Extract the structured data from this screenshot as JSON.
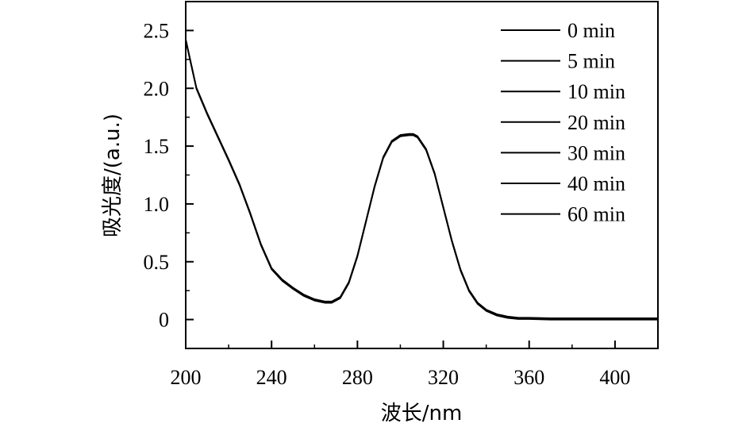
{
  "chart_data": {
    "type": "line",
    "xlabel": "波长/nm",
    "ylabel": "吸光度/(a.u.)",
    "xlim": [
      200,
      420
    ],
    "ylim": [
      -0.25,
      2.75
    ],
    "x_ticks": [
      200,
      240,
      280,
      320,
      360,
      400
    ],
    "x_tick_labels": [
      "200",
      "240",
      "280",
      "320",
      "360",
      "400"
    ],
    "y_ticks": [
      0,
      0.5,
      1.0,
      1.5,
      2.0,
      2.5
    ],
    "y_tick_labels": [
      "0",
      "0.5",
      "1.0",
      "1.5",
      "2.0",
      "2.5"
    ],
    "legend_position": "top-right",
    "line_color": "#000000",
    "series": [
      {
        "name": "0 min"
      },
      {
        "name": "5 min"
      },
      {
        "name": "10 min"
      },
      {
        "name": "20 min"
      },
      {
        "name": "30 min"
      },
      {
        "name": "40 min"
      },
      {
        "name": "60 min"
      }
    ],
    "x": [
      200,
      205,
      210,
      215,
      220,
      225,
      230,
      235,
      240,
      245,
      250,
      255,
      260,
      265,
      268,
      272,
      276,
      280,
      284,
      288,
      292,
      296,
      300,
      304,
      306,
      308,
      312,
      316,
      320,
      324,
      328,
      332,
      336,
      340,
      345,
      350,
      355,
      360,
      370,
      380,
      390,
      400,
      410,
      420
    ],
    "values": [
      2.42,
      2.0,
      1.78,
      1.58,
      1.38,
      1.17,
      0.92,
      0.65,
      0.44,
      0.34,
      0.27,
      0.21,
      0.17,
      0.15,
      0.15,
      0.19,
      0.32,
      0.55,
      0.85,
      1.15,
      1.4,
      1.54,
      1.59,
      1.6,
      1.6,
      1.58,
      1.47,
      1.26,
      0.97,
      0.68,
      0.43,
      0.25,
      0.14,
      0.08,
      0.04,
      0.02,
      0.01,
      0.01,
      0.005,
      0.005,
      0.005,
      0.005,
      0.005,
      0.005
    ]
  }
}
